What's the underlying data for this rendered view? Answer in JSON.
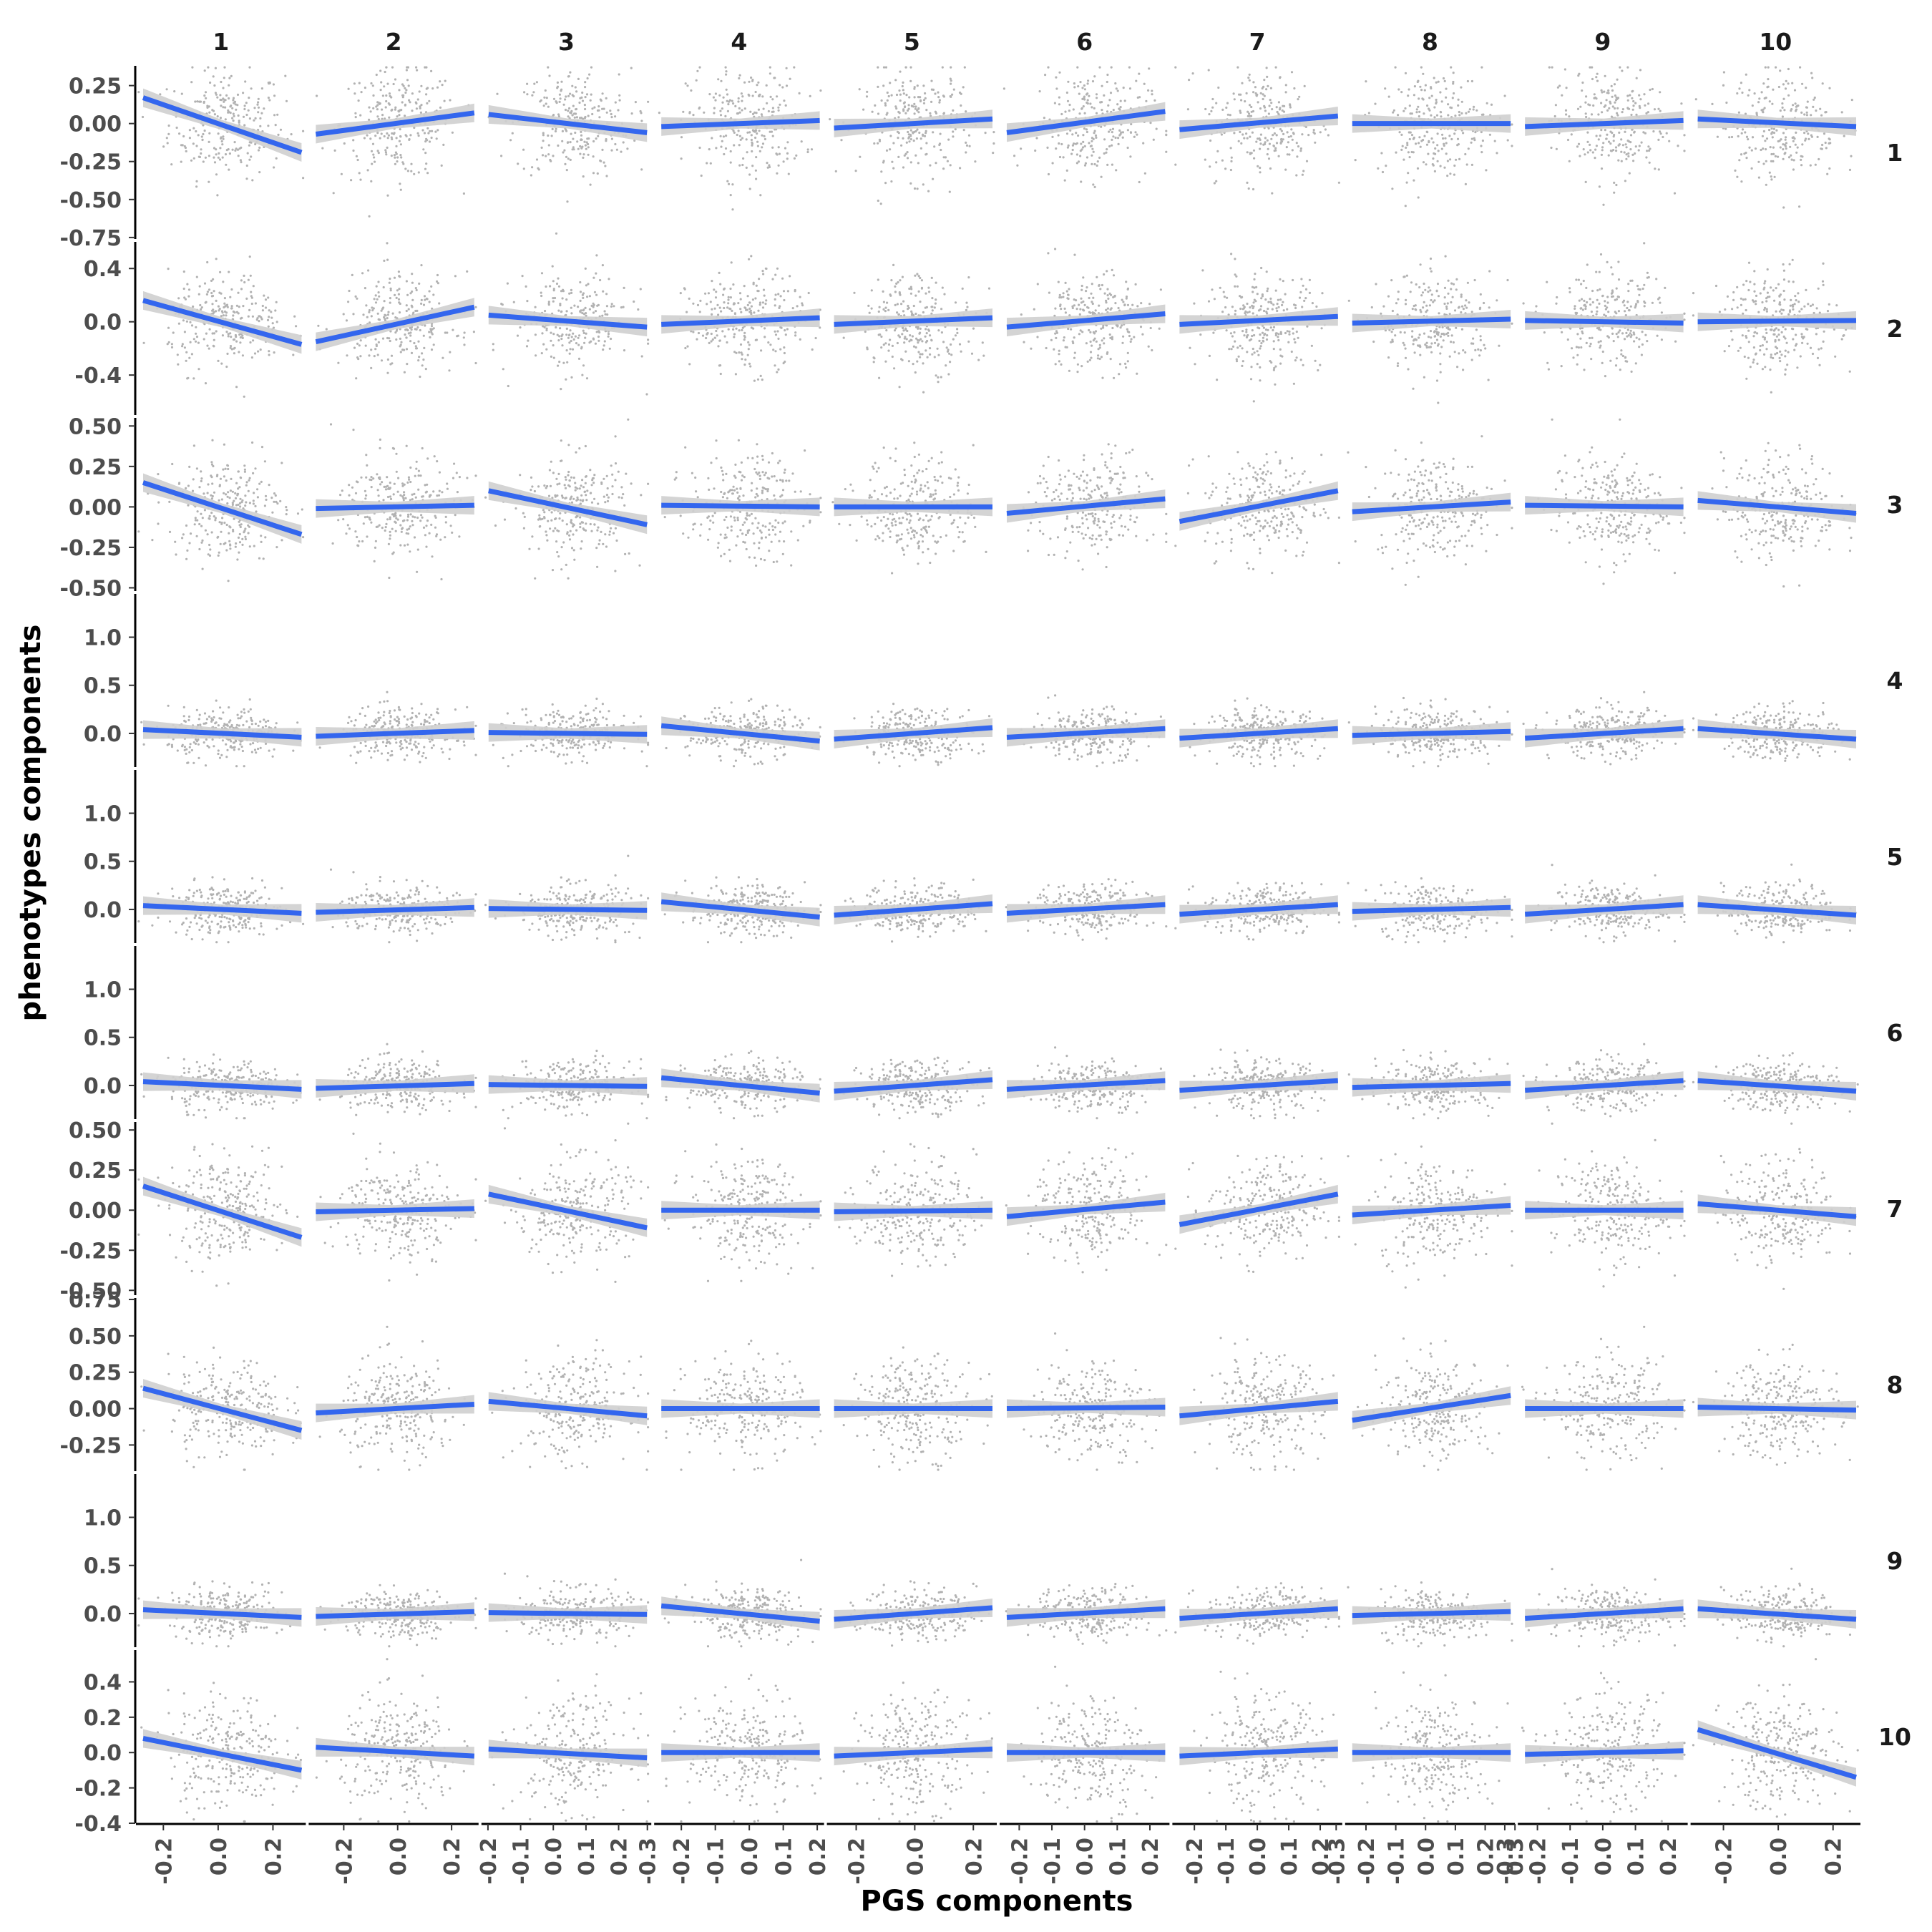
{
  "chart_data": {
    "type": "scatter",
    "layout": "facet_grid",
    "xlabel": "PGS components",
    "ylabel": "phenotypes components",
    "col_labels": [
      "1",
      "2",
      "3",
      "4",
      "5",
      "6",
      "7",
      "8",
      "9",
      "10"
    ],
    "row_labels": [
      "1",
      "2",
      "3",
      "4",
      "5",
      "6",
      "7",
      "8",
      "9",
      "10"
    ],
    "colors": {
      "fit_line": "#3366ee",
      "ci_band": "#cfcfcf",
      "points": "#555555",
      "axis": "#000000"
    },
    "x_axes": [
      {
        "xlim": [
          -0.3,
          0.32
        ],
        "ticks": [
          -0.2,
          0.0,
          0.2
        ],
        "tick_labels": [
          "-0.2",
          "0.0",
          "0.2"
        ]
      },
      {
        "xlim": [
          -0.33,
          0.3
        ],
        "ticks": [
          -0.2,
          0.0,
          0.2
        ],
        "tick_labels": [
          "-0.2",
          "0.0",
          "0.2"
        ]
      },
      {
        "xlim": [
          -0.22,
          0.3
        ],
        "ticks": [
          -0.2,
          -0.1,
          0.0,
          0.1,
          0.2
        ],
        "tick_labels": [
          "-0.2",
          "-0.1",
          "0.0",
          "0.1",
          "0.2"
        ]
      },
      {
        "xlim": [
          -0.28,
          0.22
        ],
        "ticks": [
          -0.3,
          -0.2,
          -0.1,
          0.0,
          0.1,
          0.2
        ],
        "tick_labels": [
          "-0.3",
          "-0.2",
          "-0.1",
          "0.0",
          "0.1",
          "0.2"
        ]
      },
      {
        "xlim": [
          -0.3,
          0.28
        ],
        "ticks": [
          -0.2,
          0.0,
          0.2
        ],
        "tick_labels": [
          "-0.2",
          "0.0",
          "0.2"
        ]
      },
      {
        "xlim": [
          -0.26,
          0.26
        ],
        "ticks": [
          -0.2,
          -0.1,
          0.0,
          0.1,
          0.2
        ],
        "tick_labels": [
          "-0.2",
          "-0.1",
          "0.0",
          "0.1",
          "0.2"
        ]
      },
      {
        "xlim": [
          -0.27,
          0.27
        ],
        "ticks": [
          -0.2,
          -0.1,
          0.0,
          0.1,
          0.2
        ],
        "tick_labels": [
          "-0.2",
          "-0.1",
          "0.0",
          "0.1",
          "0.2"
        ]
      },
      {
        "xlim": [
          -0.27,
          0.3
        ],
        "ticks": [
          -0.3,
          -0.2,
          -0.1,
          0.0,
          0.1,
          0.2,
          0.3
        ],
        "tick_labels": [
          "-0.3",
          "-0.2",
          "-0.1",
          "0.0",
          "0.1",
          "0.2",
          "0.3"
        ]
      },
      {
        "xlim": [
          -0.26,
          0.26
        ],
        "ticks": [
          -0.3,
          -0.2,
          -0.1,
          0.0,
          0.1,
          0.2
        ],
        "tick_labels": [
          "-0.3",
          "-0.2",
          "-0.1",
          "0.0",
          "0.1",
          "0.2"
        ]
      },
      {
        "xlim": [
          -0.32,
          0.3
        ],
        "ticks": [
          -0.2,
          0.0,
          0.2
        ],
        "tick_labels": [
          "-0.2",
          "0.0",
          "0.2"
        ]
      }
    ],
    "y_axes": [
      {
        "ylim": [
          -0.76,
          0.38
        ],
        "ticks": [
          0.25,
          0.0,
          -0.25,
          -0.5,
          -0.75
        ],
        "tick_labels": [
          "0.25",
          "0.00",
          "-0.25",
          "-0.50",
          "-0.75"
        ]
      },
      {
        "ylim": [
          -0.7,
          0.6
        ],
        "ticks": [
          0.4,
          0.0,
          -0.4
        ],
        "tick_labels": [
          "0.4",
          "0.0",
          "-0.4"
        ]
      },
      {
        "ylim": [
          -0.52,
          0.55
        ],
        "ticks": [
          0.5,
          0.25,
          0.0,
          -0.25,
          -0.5
        ],
        "tick_labels": [
          "0.50",
          "0.25",
          "0.00",
          "-0.25",
          "-0.50"
        ]
      },
      {
        "ylim": [
          -0.35,
          1.45
        ],
        "ticks": [
          1.0,
          0.5,
          0.0
        ],
        "tick_labels": [
          "1.0",
          "0.5",
          "0.0"
        ]
      },
      {
        "ylim": [
          -0.35,
          1.45
        ],
        "ticks": [
          1.0,
          0.5,
          0.0
        ],
        "tick_labels": [
          "1.0",
          "0.5",
          "0.0"
        ]
      },
      {
        "ylim": [
          -0.35,
          1.45
        ],
        "ticks": [
          1.0,
          0.5,
          0.0
        ],
        "tick_labels": [
          "1.0",
          "0.5",
          "0.0"
        ]
      },
      {
        "ylim": [
          -0.53,
          0.55
        ],
        "ticks": [
          0.5,
          0.25,
          0.0,
          -0.25,
          -0.5
        ],
        "tick_labels": [
          "0.50",
          "0.25",
          "0.00",
          "-0.25",
          "-0.50"
        ]
      },
      {
        "ylim": [
          -0.43,
          0.76
        ],
        "ticks": [
          0.75,
          0.5,
          0.25,
          0.0,
          -0.25
        ],
        "tick_labels": [
          "0.75",
          "0.50",
          "0.25",
          "0.00",
          "-0.25"
        ]
      },
      {
        "ylim": [
          -0.35,
          1.45
        ],
        "ticks": [
          1.0,
          0.5,
          0.0
        ],
        "tick_labels": [
          "1.0",
          "0.5",
          "0.0"
        ]
      },
      {
        "ylim": [
          -0.4,
          0.58
        ],
        "ticks": [
          0.4,
          0.2,
          0.0,
          -0.2,
          -0.4
        ],
        "tick_labels": [
          "0.4",
          "0.2",
          "0.0",
          "-0.2",
          "-0.4"
        ]
      }
    ],
    "point_spread_y": [
      0.18,
      0.18,
      0.16,
      0.13,
      0.13,
      0.13,
      0.16,
      0.17,
      0.13,
      0.16
    ],
    "fit_lines": [
      [
        [
          0.17,
          -0.19
        ],
        [
          -0.07,
          0.07
        ],
        [
          0.06,
          -0.06
        ],
        [
          -0.02,
          0.02
        ],
        [
          -0.03,
          0.03
        ],
        [
          -0.06,
          0.08
        ],
        [
          -0.04,
          0.05
        ],
        [
          0.0,
          0.0
        ],
        [
          -0.02,
          0.02
        ],
        [
          0.03,
          -0.02
        ]
      ],
      [
        [
          0.16,
          -0.17
        ],
        [
          -0.15,
          0.11
        ],
        [
          0.05,
          -0.04
        ],
        [
          -0.02,
          0.03
        ],
        [
          -0.02,
          0.03
        ],
        [
          -0.04,
          0.06
        ],
        [
          -0.02,
          0.04
        ],
        [
          -0.01,
          0.02
        ],
        [
          0.01,
          -0.01
        ],
        [
          0.0,
          0.01
        ]
      ],
      [
        [
          0.15,
          -0.17
        ],
        [
          -0.01,
          0.01
        ],
        [
          0.1,
          -0.11
        ],
        [
          0.01,
          0.0
        ],
        [
          0.0,
          0.0
        ],
        [
          -0.04,
          0.05
        ],
        [
          -0.09,
          0.1
        ],
        [
          -0.03,
          0.03
        ],
        [
          0.01,
          0.0
        ],
        [
          0.04,
          -0.04
        ]
      ],
      [
        [
          0.04,
          -0.04
        ],
        [
          -0.03,
          0.03
        ],
        [
          0.01,
          -0.01
        ],
        [
          0.08,
          -0.08
        ],
        [
          -0.06,
          0.06
        ],
        [
          -0.04,
          0.05
        ],
        [
          -0.05,
          0.05
        ],
        [
          -0.02,
          0.02
        ],
        [
          -0.05,
          0.05
        ],
        [
          0.05,
          -0.06
        ]
      ],
      [
        [
          0.04,
          -0.04
        ],
        [
          -0.03,
          0.02
        ],
        [
          0.01,
          -0.01
        ],
        [
          0.08,
          -0.08
        ],
        [
          -0.06,
          0.06
        ],
        [
          -0.04,
          0.05
        ],
        [
          -0.05,
          0.05
        ],
        [
          -0.02,
          0.02
        ],
        [
          -0.05,
          0.05
        ],
        [
          0.05,
          -0.06
        ]
      ],
      [
        [
          0.04,
          -0.04
        ],
        [
          -0.03,
          0.02
        ],
        [
          0.01,
          -0.01
        ],
        [
          0.08,
          -0.08
        ],
        [
          -0.06,
          0.06
        ],
        [
          -0.04,
          0.05
        ],
        [
          -0.05,
          0.05
        ],
        [
          -0.02,
          0.02
        ],
        [
          -0.05,
          0.05
        ],
        [
          0.05,
          -0.06
        ]
      ],
      [
        [
          0.15,
          -0.17
        ],
        [
          -0.01,
          0.01
        ],
        [
          0.1,
          -0.11
        ],
        [
          0.0,
          0.0
        ],
        [
          -0.01,
          0.0
        ],
        [
          -0.04,
          0.05
        ],
        [
          -0.09,
          0.1
        ],
        [
          -0.03,
          0.03
        ],
        [
          0.0,
          0.0
        ],
        [
          0.04,
          -0.04
        ]
      ],
      [
        [
          0.14,
          -0.15
        ],
        [
          -0.03,
          0.03
        ],
        [
          0.05,
          -0.05
        ],
        [
          0.0,
          0.0
        ],
        [
          0.0,
          0.0
        ],
        [
          0.0,
          0.01
        ],
        [
          -0.05,
          0.05
        ],
        [
          -0.08,
          0.09
        ],
        [
          0.0,
          0.0
        ],
        [
          0.01,
          -0.01
        ]
      ],
      [
        [
          0.04,
          -0.04
        ],
        [
          -0.03,
          0.02
        ],
        [
          0.01,
          -0.01
        ],
        [
          0.08,
          -0.08
        ],
        [
          -0.06,
          0.06
        ],
        [
          -0.04,
          0.05
        ],
        [
          -0.05,
          0.05
        ],
        [
          -0.02,
          0.02
        ],
        [
          -0.05,
          0.05
        ],
        [
          0.05,
          -0.06
        ]
      ],
      [
        [
          0.08,
          -0.1
        ],
        [
          0.03,
          -0.02
        ],
        [
          0.02,
          -0.03
        ],
        [
          0.0,
          0.0
        ],
        [
          -0.02,
          0.02
        ],
        [
          0.0,
          0.0
        ],
        [
          -0.02,
          0.02
        ],
        [
          0.0,
          0.0
        ],
        [
          -0.01,
          0.01
        ],
        [
          0.13,
          -0.14
        ]
      ]
    ]
  }
}
